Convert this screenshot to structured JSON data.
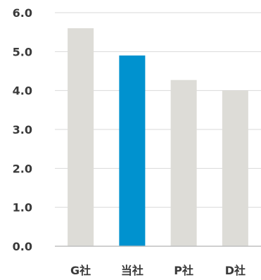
{
  "chart_data": {
    "type": "bar",
    "title": "",
    "xlabel": "",
    "ylabel": "",
    "categories": [
      "G社",
      "当社",
      "P社",
      "D社"
    ],
    "values": [
      5.6,
      4.9,
      4.27,
      4.0
    ],
    "ylim": [
      0,
      6.0
    ],
    "yticks": [
      "0.0",
      "1.0",
      "2.0",
      "3.0",
      "4.0",
      "5.0",
      "6.0"
    ],
    "grid": true,
    "legend": "none",
    "colors": {
      "default_bar": "#dddcd7",
      "highlight_bar": "#0092cf",
      "gridline": "#d9d9d9",
      "axis": "#bfbfbf",
      "text": "#3a3a3a"
    },
    "highlight_index": 1
  }
}
